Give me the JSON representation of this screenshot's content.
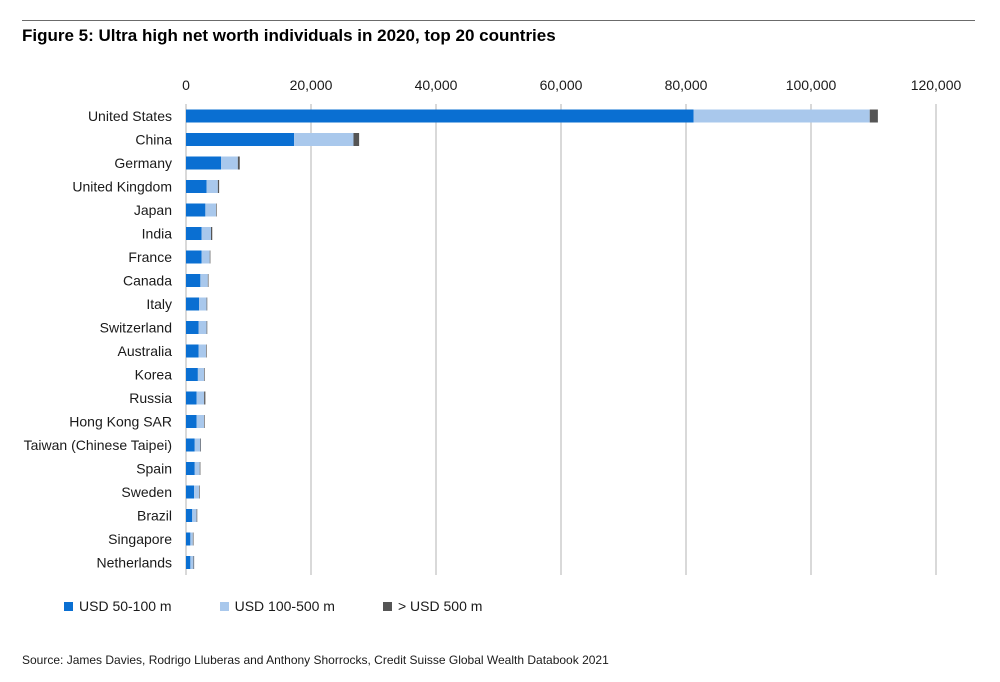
{
  "title": "Figure 5: Ultra high net worth individuals in 2020, top 20 countries",
  "source": "Source: James Davies, Rodrigo Lluberas and Anthony Shorrocks, Credit Suisse Global Wealth Databook 2021",
  "colors": {
    "series_1": "#0a6fd2",
    "series_2": "#a9c8ec",
    "series_3": "#555555",
    "gridline": "#b3b3b3",
    "rule": "#6b6b6b"
  },
  "chart_data": {
    "type": "bar",
    "orientation": "horizontal",
    "stacked": true,
    "title": "Figure 5: Ultra high net worth individuals in 2020, top 20 countries",
    "xlabel": "",
    "ylabel": "",
    "xlim": [
      0,
      120000
    ],
    "xticks": [
      0,
      20000,
      40000,
      60000,
      80000,
      100000,
      120000
    ],
    "xtick_labels": [
      "0",
      "20,000",
      "40,000",
      "60,000",
      "80,000",
      "100,000",
      "120,000"
    ],
    "x_axis_position": "top",
    "grid": true,
    "legend_position": "bottom-left",
    "categories": [
      "United States",
      "China",
      "Germany",
      "United Kingdom",
      "Japan",
      "India",
      "France",
      "Canada",
      "Italy",
      "Switzerland",
      "Australia",
      "Korea",
      "Russia",
      "Hong Kong SAR",
      "Taiwan (Chinese Taipei)",
      "Spain",
      "Sweden",
      "Brazil",
      "Singapore",
      "Netherlands"
    ],
    "series": [
      {
        "name": "USD 50-100 m",
        "values": [
          81200,
          17300,
          5600,
          3300,
          3100,
          2500,
          2500,
          2300,
          2100,
          2000,
          2000,
          1900,
          1700,
          1700,
          1400,
          1400,
          1300,
          1000,
          700,
          700
        ]
      },
      {
        "name": "USD 100-500 m",
        "values": [
          28200,
          9500,
          2700,
          1800,
          1700,
          1500,
          1300,
          1200,
          1200,
          1300,
          1200,
          1000,
          1200,
          1200,
          900,
          800,
          800,
          700,
          400,
          500
        ]
      },
      {
        "name": "> USD 500 m",
        "values": [
          1300,
          900,
          300,
          200,
          100,
          200,
          100,
          100,
          100,
          100,
          100,
          100,
          200,
          100,
          100,
          100,
          100,
          100,
          100,
          100
        ]
      }
    ]
  }
}
